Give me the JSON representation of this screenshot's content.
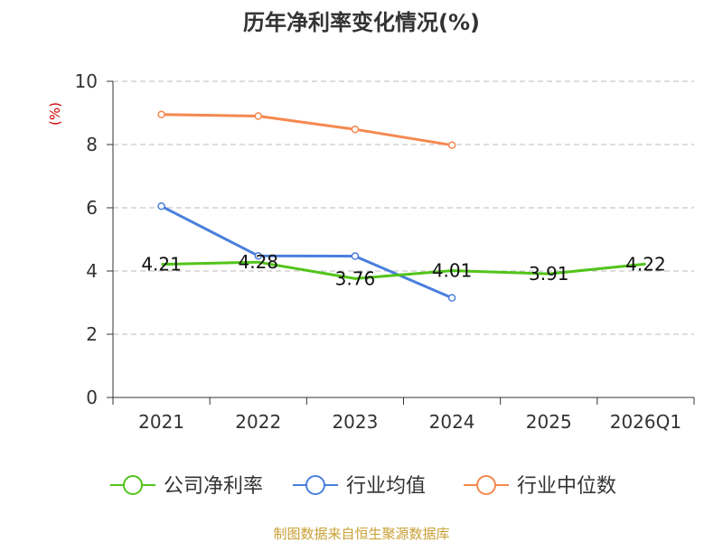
{
  "source_note": "制图数据来自恒生聚源数据库",
  "chart_data": {
    "type": "line",
    "title": "历年净利率变化情况(%)",
    "ylabel": "(%)",
    "xlabel": "",
    "categories": [
      "2021",
      "2022",
      "2023",
      "2024",
      "2025",
      "2026Q1"
    ],
    "ylim": [
      0,
      10
    ],
    "yticks": [
      0,
      2,
      4,
      6,
      8,
      10
    ],
    "grid": true,
    "legend_position": "bottom",
    "series": [
      {
        "name": "公司净利率",
        "color": "#52c41a",
        "values": [
          4.21,
          4.28,
          3.76,
          4.01,
          3.91,
          4.22
        ],
        "labels": [
          "4.21",
          "4.28",
          "3.76",
          "4.01",
          "3.91",
          "4.22"
        ],
        "show_markers": false,
        "show_labels": true
      },
      {
        "name": "行业均值",
        "color": "#4a7fdc",
        "values": [
          6.05,
          4.48,
          4.47,
          3.15,
          null,
          null
        ],
        "show_markers": true,
        "show_labels": false
      },
      {
        "name": "行业中位数",
        "color": "#f5884f",
        "values": [
          8.95,
          8.9,
          8.48,
          7.98,
          null,
          null
        ],
        "show_markers": true,
        "show_labels": false
      }
    ]
  }
}
